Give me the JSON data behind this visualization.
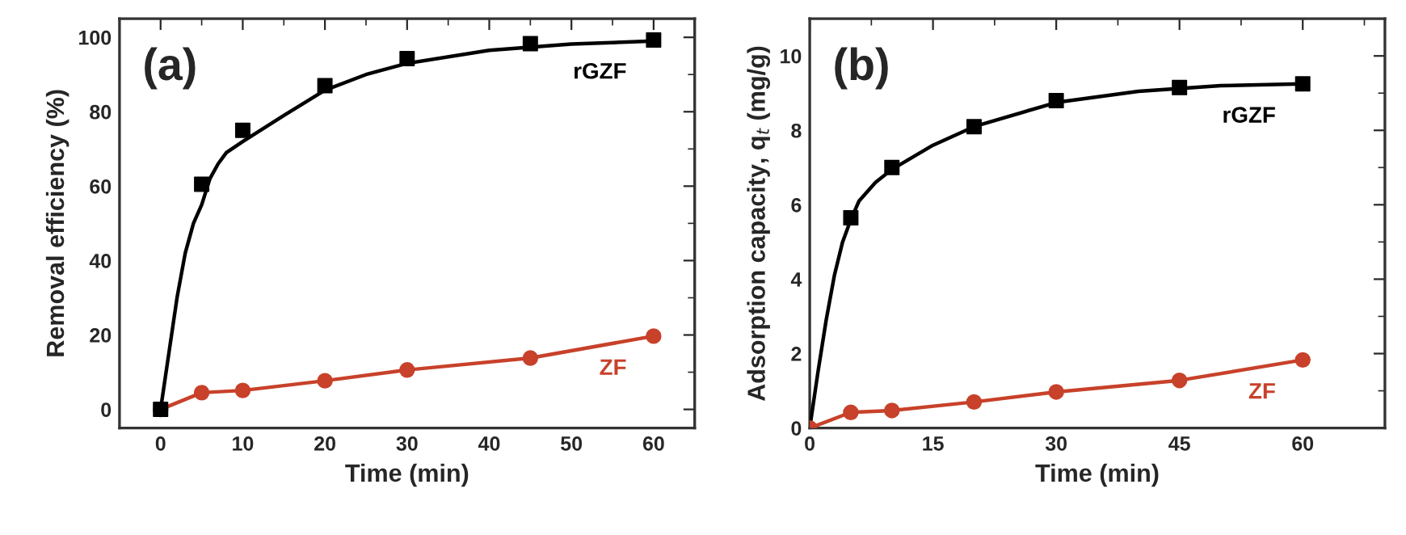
{
  "chart_data": [
    {
      "type": "line",
      "title": "(a)",
      "xlabel": "Time (min)",
      "ylabel": "Removal efficiency (%)",
      "xlim": [
        -5,
        65
      ],
      "xticks": [
        0,
        10,
        20,
        30,
        40,
        50,
        60
      ],
      "ylim": [
        -5,
        105
      ],
      "yticks": [
        0,
        20,
        40,
        60,
        80,
        100
      ],
      "grid": false,
      "legend": false,
      "series": [
        {
          "color": "#000000",
          "marker": "none",
          "x": [
            0,
            1,
            2,
            3,
            4,
            5,
            6,
            7,
            8,
            10,
            15,
            20,
            25,
            30,
            40,
            50,
            60
          ],
          "values": [
            0,
            15,
            30,
            42,
            50,
            55,
            62,
            66,
            69,
            72,
            79,
            85.8,
            90,
            93,
            96.5,
            98.2,
            99
          ]
        },
        {
          "type": "scatter",
          "name": "rGZF",
          "color": "#000000",
          "marker": "square",
          "x": [
            0,
            5,
            10,
            20,
            30,
            45,
            60
          ],
          "values": [
            0,
            60.5,
            75,
            87,
            94.3,
            98.3,
            99.3
          ]
        },
        {
          "name": "ZF",
          "color": "#c8412a",
          "marker": "circle",
          "x": [
            0,
            5,
            10,
            20,
            30,
            45,
            60
          ],
          "values": [
            0,
            4.5,
            5.1,
            7.7,
            10.6,
            13.8,
            19.7
          ]
        }
      ]
    },
    {
      "type": "line",
      "title": "(b)",
      "xlabel": "Time (min)",
      "ylabel": "Adsorption capacity, q$_{t}$ (mg/g)",
      "xlim": [
        0,
        70
      ],
      "xticks": [
        0,
        15,
        30,
        45,
        60
      ],
      "ylim": [
        0,
        11
      ],
      "yticks": [
        0,
        2,
        4,
        6,
        8,
        10
      ],
      "grid": false,
      "legend": false,
      "series": [
        {
          "color": "#000000",
          "marker": "none",
          "x": [
            0,
            1,
            2,
            3,
            4,
            5,
            6,
            8,
            10,
            15,
            20,
            30,
            40,
            50,
            60
          ],
          "values": [
            0,
            1.5,
            2.9,
            4.1,
            5.0,
            5.6,
            6.1,
            6.6,
            6.95,
            7.6,
            8.1,
            8.75,
            9.05,
            9.2,
            9.25
          ]
        },
        {
          "type": "scatter",
          "name": "rGZF",
          "color": "#000000",
          "marker": "square",
          "x": [
            5,
            10,
            20,
            30,
            45,
            60
          ],
          "values": [
            5.65,
            7.0,
            8.1,
            8.8,
            9.15,
            9.25
          ]
        },
        {
          "name": "ZF",
          "color": "#c8412a",
          "marker": "circle",
          "x": [
            0,
            5,
            10,
            20,
            30,
            45,
            60
          ],
          "values": [
            0,
            0.42,
            0.47,
            0.7,
            0.97,
            1.28,
            1.83
          ]
        }
      ]
    }
  ]
}
